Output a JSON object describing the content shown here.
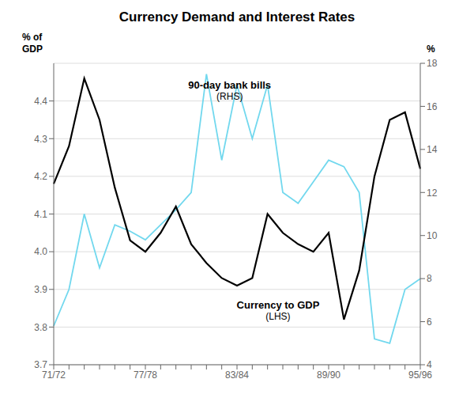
{
  "chart_data": {
    "type": "line",
    "title": "Currency Demand and Interest Rates",
    "y_label": "% of\nGDP",
    "y2_label": "%",
    "categories": [
      "71/72",
      null,
      null,
      null,
      null,
      null,
      "77/78",
      null,
      null,
      null,
      null,
      null,
      "83/84",
      null,
      null,
      null,
      null,
      null,
      "89/90",
      null,
      null,
      null,
      null,
      null,
      "95/96"
    ],
    "series": [
      {
        "values": [
          5.8,
          7.5,
          11.0,
          8.5,
          10.5,
          10.2,
          9.8,
          10.5,
          11.2,
          12.0,
          17.5,
          13.5,
          17.0,
          14.5,
          17.0,
          12.0,
          11.5,
          12.5,
          13.5,
          13.2,
          12.0,
          5.2,
          5.0,
          7.5,
          8.0
        ],
        "color": "#72d8ee",
        "axis": "y2"
      },
      {
        "values": [
          4.18,
          4.28,
          4.46,
          4.35,
          4.17,
          4.03,
          4.0,
          4.05,
          4.12,
          4.02,
          3.97,
          3.93,
          3.91,
          3.93,
          4.1,
          4.05,
          4.02,
          4.0,
          4.05,
          3.82,
          3.95,
          4.2,
          4.35,
          4.37,
          4.22
        ],
        "color": "#000000"
      }
    ],
    "ylim": [
      3.7,
      4.5
    ],
    "yticks": [
      3.7,
      3.8,
      3.9,
      {
        "value": 4.0,
        "label": "4.0"
      },
      4.1,
      4.2,
      4.3,
      4.4
    ],
    "y2lim": [
      4,
      18
    ],
    "y2ticks": [
      4,
      6,
      8,
      10,
      12,
      14,
      16,
      18
    ],
    "grid": true,
    "annotations": [
      "90-day bank bills",
      "(RHS)",
      "Currency to GDP",
      "(LHS)"
    ]
  }
}
